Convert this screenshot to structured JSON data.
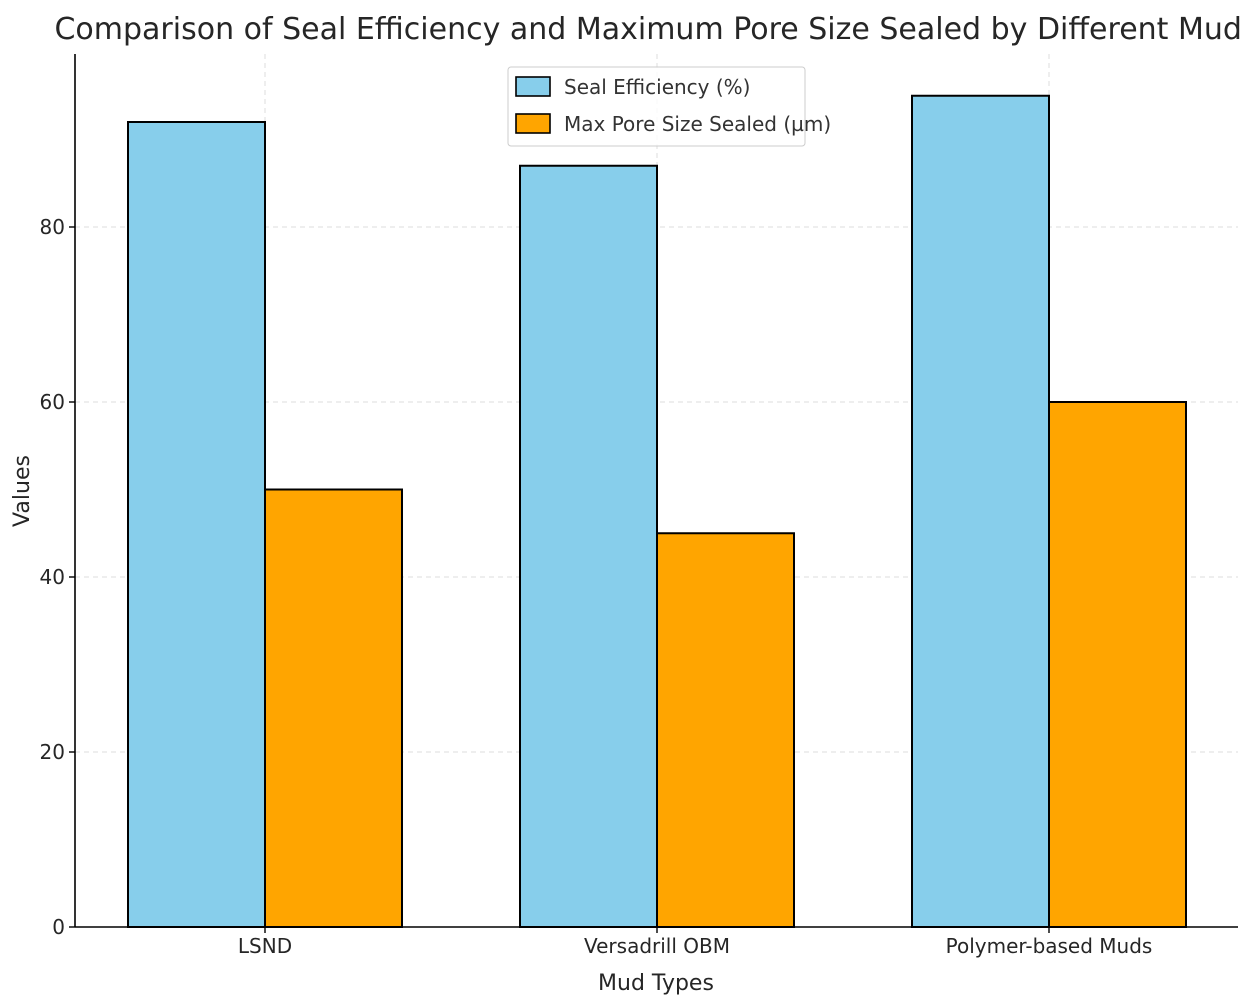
{
  "chart_data": {
    "type": "bar",
    "title": "Comparison of Seal Efficiency and Maximum Pore Size Sealed by Different Muds",
    "xlabel": "Mud Types",
    "ylabel": "Values",
    "categories": [
      "LSND",
      "Versadrill OBM",
      "Polymer-based Muds"
    ],
    "series": [
      {
        "name": "Seal Efficiency (%)",
        "values": [
          92,
          87,
          95
        ],
        "color": "#87CEEB"
      },
      {
        "name": "Max Pore Size Sealed (µm)",
        "values": [
          50,
          45,
          60
        ],
        "color": "#FFA500"
      }
    ],
    "ylim": [
      0,
      100
    ],
    "yticks": [
      0,
      20,
      40,
      60,
      80
    ],
    "grid": true,
    "legend_position": "top-center"
  }
}
